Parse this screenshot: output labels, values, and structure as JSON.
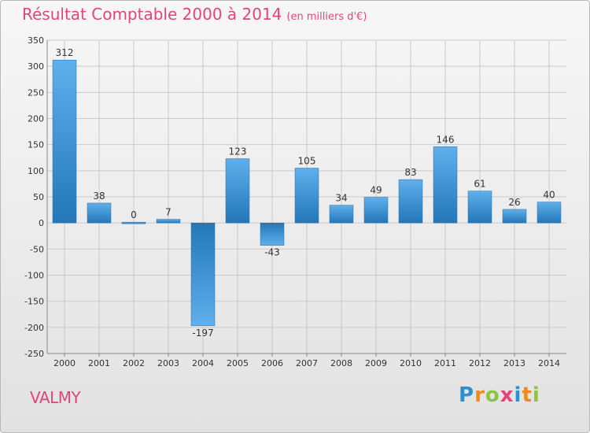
{
  "title": "Résultat Comptable 2000 à 2014",
  "title_unit": "(en milliers d'€)",
  "commune": "VALMY",
  "logo": {
    "letters": [
      "P",
      "r",
      "o",
      "x",
      "i",
      "t",
      "i"
    ],
    "colors": [
      "#2f8fd0",
      "#f08a1c",
      "#8cc63f",
      "#e0457a",
      "#2f8fd0",
      "#f08a1c",
      "#8cc63f"
    ]
  },
  "colors": {
    "bar_light": "#5fb0ec",
    "bar_dark": "#2377b8",
    "text_accent": "#e0457a"
  },
  "chart_data": {
    "type": "bar",
    "categories": [
      "2000",
      "2001",
      "2002",
      "2003",
      "2004",
      "2005",
      "2006",
      "2007",
      "2008",
      "2009",
      "2010",
      "2011",
      "2012",
      "2013",
      "2014"
    ],
    "values": [
      312,
      38,
      0,
      7,
      -197,
      123,
      -43,
      105,
      34,
      49,
      83,
      146,
      61,
      26,
      40
    ],
    "ylim": [
      -250,
      350
    ],
    "yticks": [
      350,
      300,
      250,
      200,
      150,
      100,
      50,
      0,
      -50,
      -100,
      -150,
      -200,
      -250
    ],
    "grid": true
  }
}
